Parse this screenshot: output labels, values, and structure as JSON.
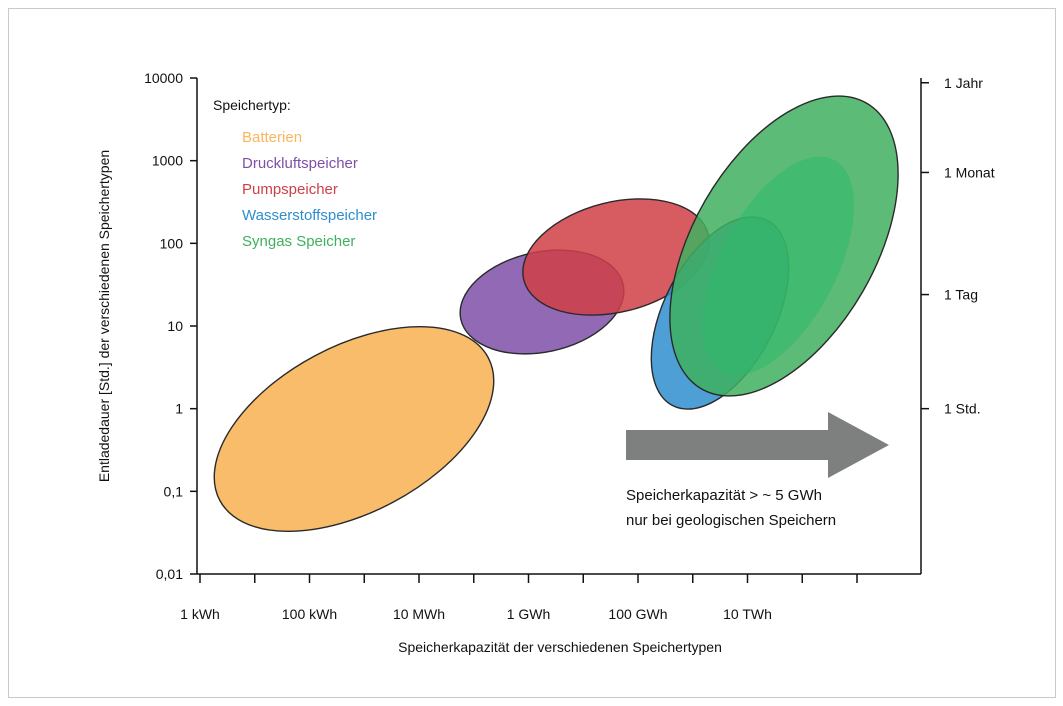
{
  "chart_data": {
    "type": "scatter",
    "xlabel": "Speicherkapazität der verschiedenen Speichertypen",
    "ylabel": "Entladedauer [Std.] der verschiedenen Speichertypen",
    "x_scale": "log",
    "y_scale": "log",
    "x_unit": "kWh",
    "y_unit": "Std.",
    "xlim": [
      1,
      1000000000000
    ],
    "ylim": [
      0.01,
      10000
    ],
    "x_tick_values": [
      1,
      100,
      10000,
      1000000,
      100000000,
      10000000000
    ],
    "x_tick_labels": [
      "1 kWh",
      "100 kWh",
      "10 MWh",
      "1 GWh",
      "100 GWh",
      "10 TWh"
    ],
    "y_tick_values": [
      0.01,
      0.1,
      1,
      10,
      100,
      1000,
      10000
    ],
    "y_tick_labels": [
      "0,01",
      "0,1",
      "1",
      "10",
      "100",
      "1000",
      "10000"
    ],
    "right_tick_values": [
      1,
      24,
      720,
      8760
    ],
    "right_tick_labels": [
      "1 Std.",
      "1 Tag",
      "1 Monat",
      "1 Jahr"
    ],
    "legend_title": "Speichertyp:",
    "legend_position": "top-left",
    "grid": false,
    "series": [
      {
        "name": "Batterien",
        "color": "#f9b65e",
        "region": {
          "x_range_kwh": [
            0.3,
            30000
          ],
          "y_range_h": [
            0.05,
            8
          ]
        }
      },
      {
        "name": "Druckluftspeicher",
        "color": "#7e4fa8",
        "region": {
          "x_range_kwh": [
            30000,
            30000000
          ],
          "y_range_h": [
            2,
            130
          ]
        }
      },
      {
        "name": "Pumpspeicher",
        "color": "#cf3f46",
        "region": {
          "x_range_kwh": [
            1500000,
            3000000000
          ],
          "y_range_h": [
            10,
            350
          ]
        }
      },
      {
        "name": "Wasserstoffspeicher",
        "color": "#2e8ecf",
        "region": {
          "x_range_kwh": [
            300000000,
            200000000000
          ],
          "y_range_h": [
            1,
            1000
          ]
        }
      },
      {
        "name": "Syngas Speicher",
        "color": "#3fb05f",
        "region": {
          "x_range_kwh": [
            400000000,
            2000000000000
          ],
          "y_range_h": [
            2,
            7000
          ]
        }
      }
    ],
    "annotation": {
      "text_lines": [
        "Speicherkapazität > ~ 5 GWh",
        "nur bei geologischen Speichern"
      ],
      "arrow_color": "#7e807f",
      "arrow_direction": "right"
    }
  }
}
